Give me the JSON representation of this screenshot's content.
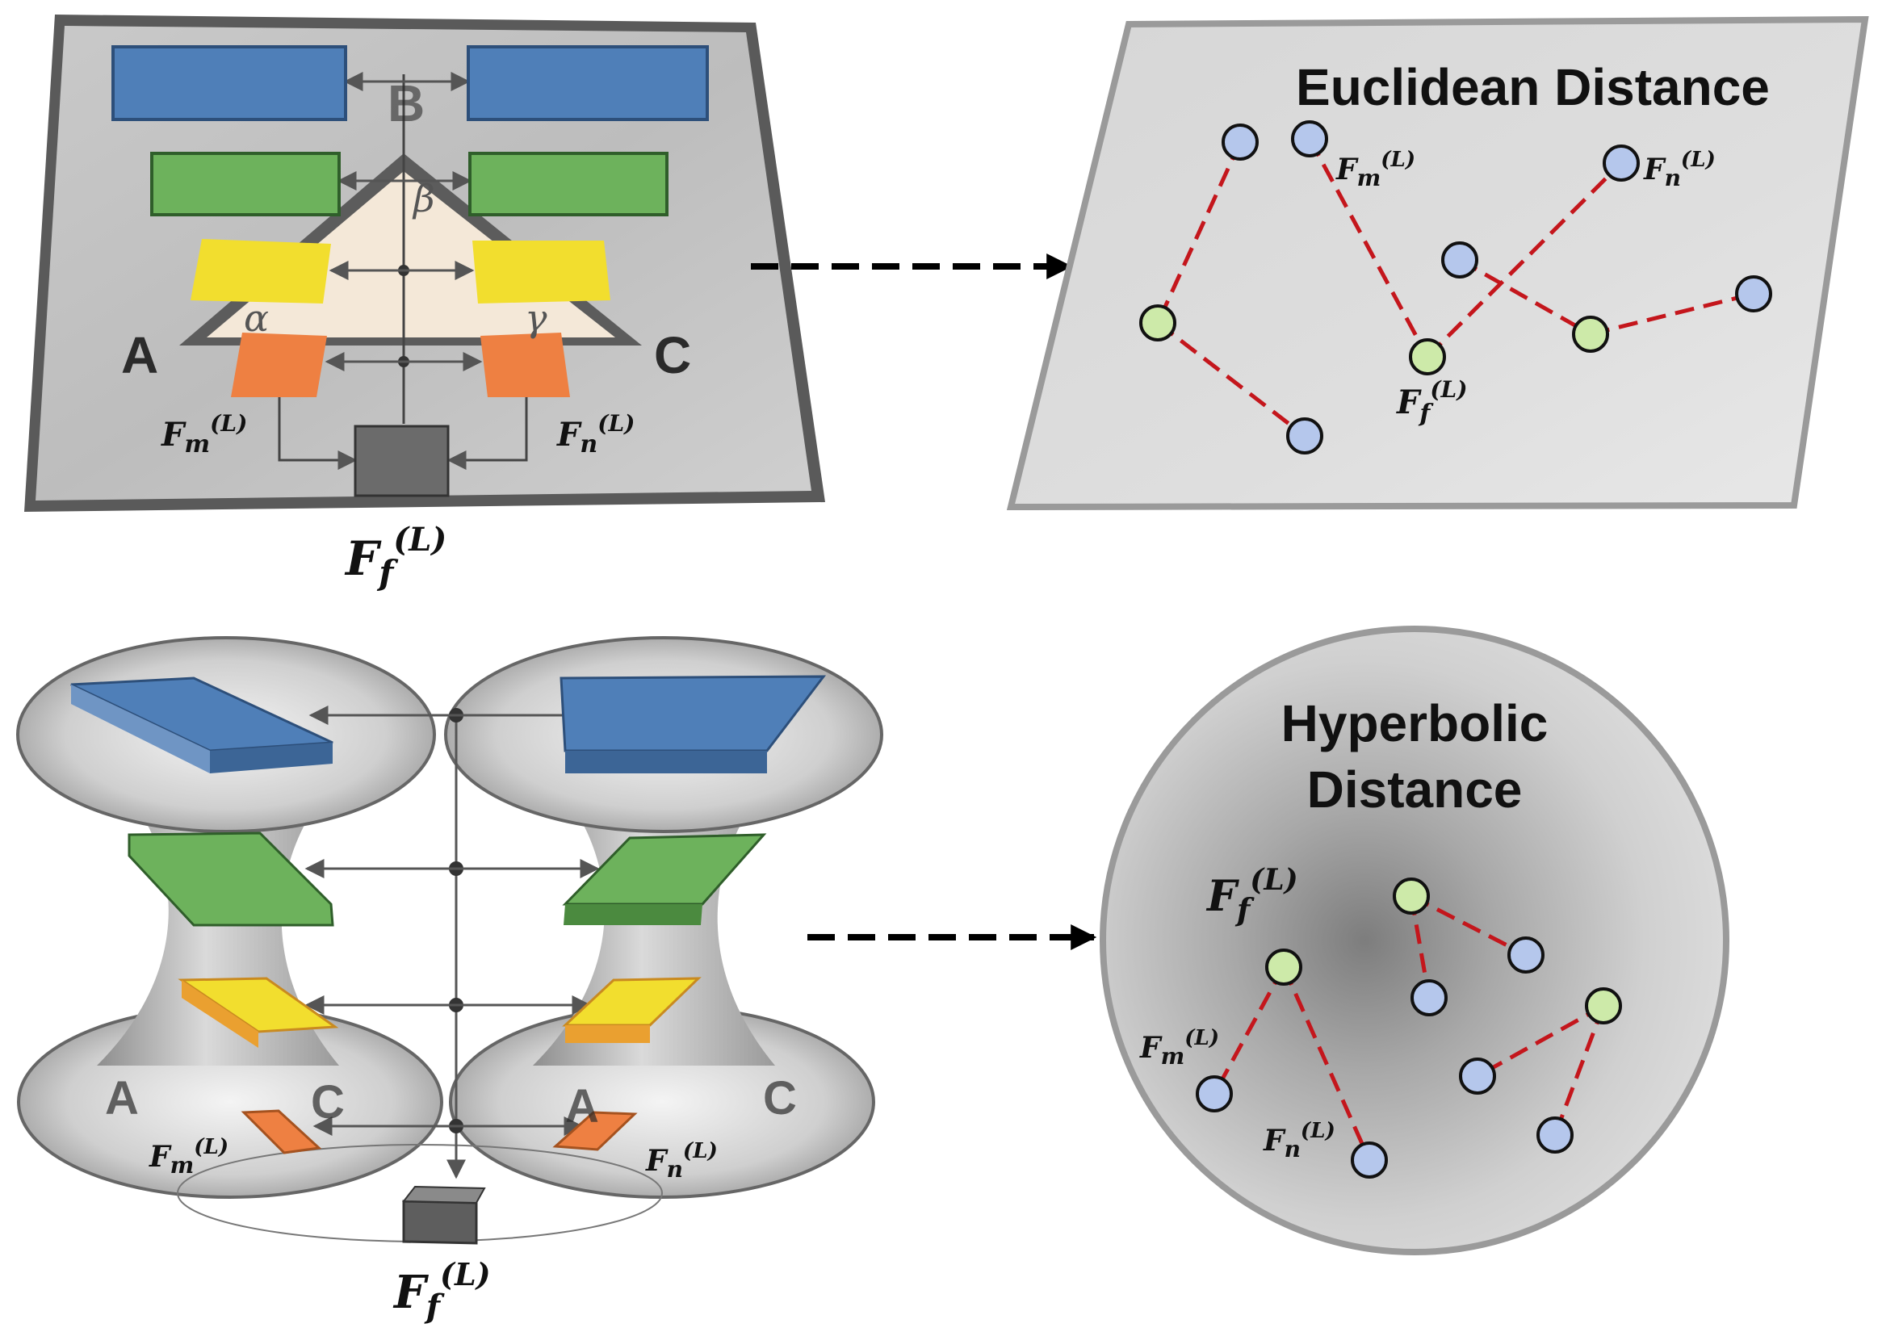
{
  "colors": {
    "blue": "#4f7fb8",
    "green": "#6db25c",
    "yellow": "#f2de2e",
    "orange": "#ee8042",
    "node_blue": "#b5c7ec",
    "node_green": "#cdeaa9",
    "edge_red": "#c4161c"
  },
  "euclidean": {
    "title": "Euclidean Distance",
    "corner_a": "A",
    "corner_b": "B",
    "corner_c": "C",
    "greek_alpha": "α",
    "greek_beta": "β",
    "greek_gamma": "γ",
    "label_fm": {
      "base": "F",
      "sub": "m",
      "sup": "(L)"
    },
    "label_fn": {
      "base": "F",
      "sub": "n",
      "sup": "(L)"
    },
    "label_ff": {
      "base": "F",
      "sub": "f",
      "sup": "(L)"
    },
    "plane_fm": {
      "base": "F",
      "sub": "m",
      "sup": "(L)"
    },
    "plane_fn": {
      "base": "F",
      "sub": "n",
      "sup": "(L)"
    },
    "plane_ff": {
      "base": "F",
      "sub": "f",
      "sup": "(L)"
    }
  },
  "hyperbolic": {
    "title_line1": "Hyperbolic",
    "title_line2": "Distance",
    "corner_a1": "A",
    "corner_c1": "C",
    "corner_a2": "A",
    "corner_c2": "C",
    "label_fm": {
      "base": "F",
      "sub": "m",
      "sup": "(L)"
    },
    "label_fn": {
      "base": "F",
      "sub": "n",
      "sup": "(L)"
    },
    "label_ff": {
      "base": "F",
      "sub": "f",
      "sup": "(L)"
    },
    "disk_fm": {
      "base": "F",
      "sub": "m",
      "sup": "(L)"
    },
    "disk_fn": {
      "base": "F",
      "sub": "n",
      "sup": "(L)"
    },
    "disk_ff": {
      "base": "F",
      "sub": "f",
      "sup": "(L)"
    }
  }
}
